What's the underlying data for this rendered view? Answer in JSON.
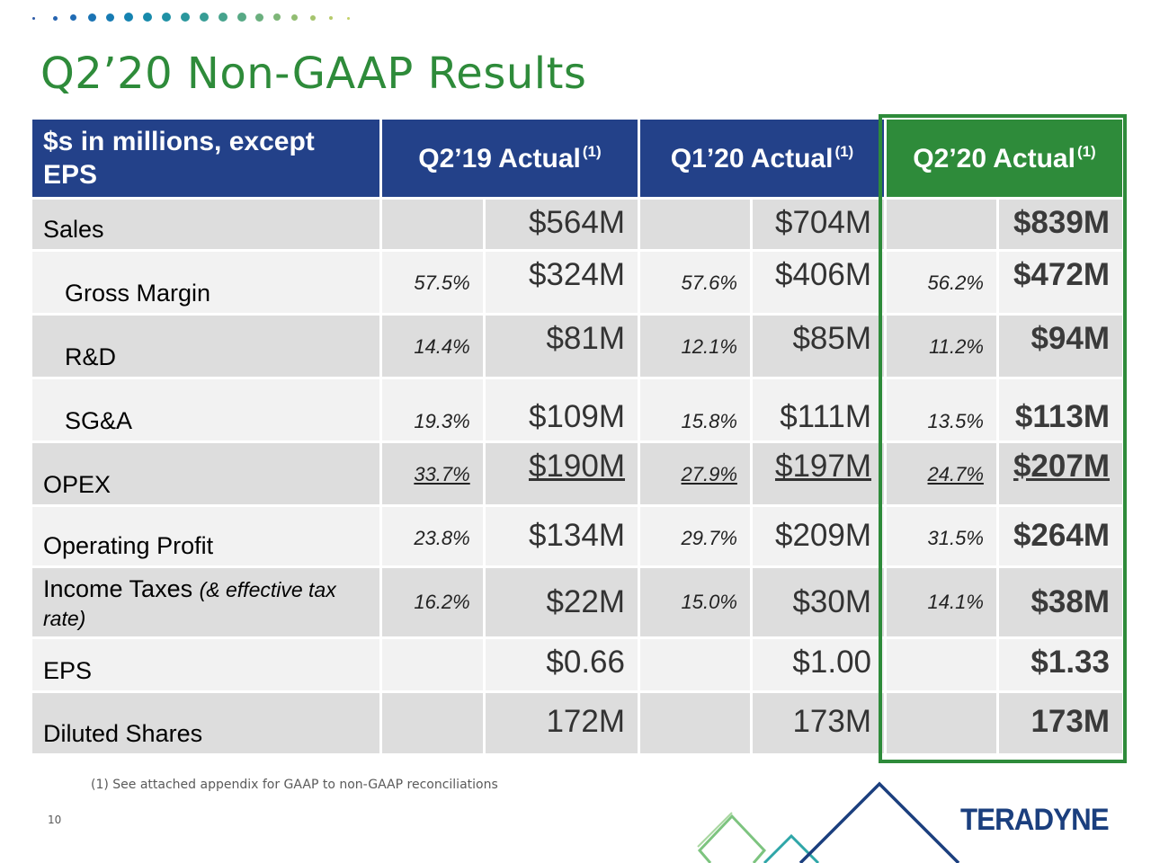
{
  "slide": {
    "title": "Q2’20 Non-GAAP Results",
    "page_number": "10",
    "footnote": "(1)  See attached appendix for GAAP to non-GAAP reconciliations",
    "logo_text": "TERADYNE"
  },
  "colors": {
    "title_green": "#2e8b3a",
    "header_blue": "#234189",
    "highlight_green": "#2e8b3a",
    "row_shade_dark": "#dddddd",
    "row_shade_light": "#f2f2f2",
    "logo_blue": "#1b3f7e"
  },
  "table": {
    "header": {
      "label": "$s in millions, except EPS",
      "columns": [
        {
          "label": "Q2’19 Actual",
          "superscript": "(1)"
        },
        {
          "label": "Q1’20 Actual",
          "superscript": "(1)"
        },
        {
          "label": "Q2’20 Actual",
          "superscript": "(1)"
        }
      ]
    },
    "rows": [
      {
        "label": "Sales",
        "cells": [
          {
            "pct": "",
            "value": "$564M"
          },
          {
            "pct": "",
            "value": "$704M"
          },
          {
            "pct": "",
            "value": "$839M"
          }
        ]
      },
      {
        "label": "Gross Margin",
        "cells": [
          {
            "pct": "57.5%",
            "value": "$324M"
          },
          {
            "pct": "57.6%",
            "value": "$406M"
          },
          {
            "pct": "56.2%",
            "value": "$472M"
          }
        ]
      },
      {
        "label": "R&D",
        "cells": [
          {
            "pct": "14.4%",
            "value": "$81M"
          },
          {
            "pct": "12.1%",
            "value": "$85M"
          },
          {
            "pct": "11.2%",
            "value": "$94M"
          }
        ]
      },
      {
        "label": "SG&A",
        "cells": [
          {
            "pct": "19.3%",
            "value": "$109M"
          },
          {
            "pct": "15.8%",
            "value": "$111M"
          },
          {
            "pct": "13.5%",
            "value": "$113M"
          }
        ]
      },
      {
        "label": "OPEX",
        "cells": [
          {
            "pct": "33.7%",
            "value": "$190M"
          },
          {
            "pct": "27.9%",
            "value": "$197M"
          },
          {
            "pct": "24.7%",
            "value": "$207M"
          }
        ]
      },
      {
        "label": "Operating Profit",
        "cells": [
          {
            "pct": "23.8%",
            "value": "$134M"
          },
          {
            "pct": "29.7%",
            "value": "$209M"
          },
          {
            "pct": "31.5%",
            "value": "$264M"
          }
        ]
      },
      {
        "label": "Income Taxes",
        "note": "(& effective tax rate)",
        "cells": [
          {
            "pct": "16.2%",
            "value": "$22M"
          },
          {
            "pct": "15.0%",
            "value": "$30M"
          },
          {
            "pct": "14.1%",
            "value": "$38M"
          }
        ]
      },
      {
        "label": "EPS",
        "cells": [
          {
            "pct": "",
            "value": "$0.66"
          },
          {
            "pct": "",
            "value": "$1.00"
          },
          {
            "pct": "",
            "value": "$1.33"
          }
        ]
      },
      {
        "label": "Diluted Shares",
        "cells": [
          {
            "pct": "",
            "value": "172M"
          },
          {
            "pct": "",
            "value": "173M"
          },
          {
            "pct": "",
            "value": "173M"
          }
        ]
      }
    ]
  }
}
